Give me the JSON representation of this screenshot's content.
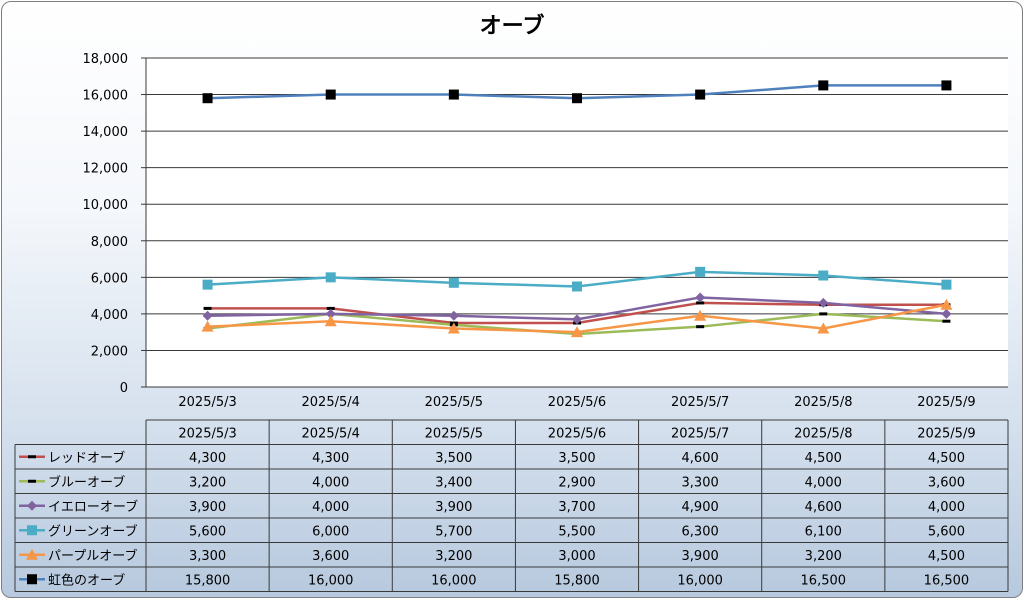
{
  "chart_data": {
    "type": "line",
    "title": "オーブ",
    "xlabel": "",
    "ylabel": "",
    "categories": [
      "2025/5/3",
      "2025/5/4",
      "2025/5/5",
      "2025/5/6",
      "2025/5/7",
      "2025/5/8",
      "2025/5/9"
    ],
    "ylim": [
      0,
      18000
    ],
    "yticks": [
      "0",
      "2,000",
      "4,000",
      "6,000",
      "8,000",
      "10,000",
      "12,000",
      "14,000",
      "16,000",
      "18,000"
    ],
    "grid": true,
    "legend": "data-table",
    "series": [
      {
        "name": "レッドオーブ",
        "color": "#c0504d",
        "marker": "dash",
        "values": [
          4300,
          4300,
          3500,
          3500,
          4600,
          4500,
          4500
        ],
        "labels": [
          "4,300",
          "4,300",
          "3,500",
          "3,500",
          "4,600",
          "4,500",
          "4,500"
        ]
      },
      {
        "name": "ブルーオーブ",
        "color": "#9bbb59",
        "marker": "dash",
        "values": [
          3200,
          4000,
          3400,
          2900,
          3300,
          4000,
          3600
        ],
        "labels": [
          "3,200",
          "4,000",
          "3,400",
          "2,900",
          "3,300",
          "4,000",
          "3,600"
        ]
      },
      {
        "name": "イエローオーブ",
        "color": "#8064a2",
        "marker": "diamond",
        "values": [
          3900,
          4000,
          3900,
          3700,
          4900,
          4600,
          4000
        ],
        "labels": [
          "3,900",
          "4,000",
          "3,900",
          "3,700",
          "4,900",
          "4,600",
          "4,000"
        ]
      },
      {
        "name": "グリーンオーブ",
        "color": "#4bacc6",
        "marker": "square",
        "values": [
          5600,
          6000,
          5700,
          5500,
          6300,
          6100,
          5600
        ],
        "labels": [
          "5,600",
          "6,000",
          "5,700",
          "5,500",
          "6,300",
          "6,100",
          "5,600"
        ]
      },
      {
        "name": "パープルオーブ",
        "color": "#f79646",
        "marker": "triangle",
        "values": [
          3300,
          3600,
          3200,
          3000,
          3900,
          3200,
          4500
        ],
        "labels": [
          "3,300",
          "3,600",
          "3,200",
          "3,000",
          "3,900",
          "3,200",
          "4,500"
        ]
      },
      {
        "name": "虹色のオーブ",
        "color": "#4f81bd",
        "marker": "black-square",
        "values": [
          15800,
          16000,
          16000,
          15800,
          16000,
          16500,
          16500
        ],
        "labels": [
          "15,800",
          "16,000",
          "16,000",
          "15,800",
          "16,000",
          "16,500",
          "16,500"
        ]
      }
    ]
  }
}
